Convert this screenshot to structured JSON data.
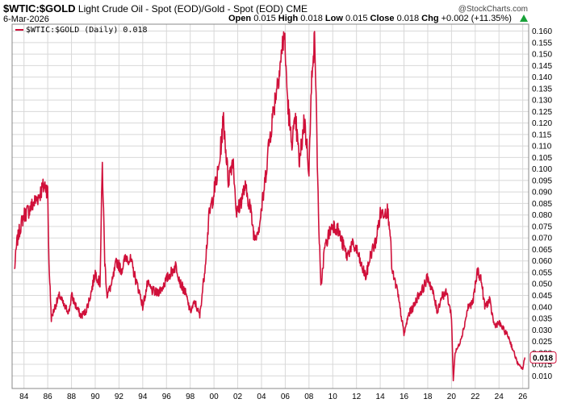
{
  "header": {
    "symbol": "$WTIC:$GOLD",
    "description": "Light Crude Oil - Spot (EOD)/Gold - Spot (EOD)",
    "exchange": "CME",
    "date": "6-Mar-2026",
    "open_label": "Open",
    "open": "0.015",
    "high_label": "High",
    "high": "0.018",
    "low_label": "Low",
    "low": "0.015",
    "close_label": "Close",
    "close": "0.018",
    "chg_label": "Chg",
    "chg": "+0.002 (+11.35%)",
    "brand": "@StockCharts.com"
  },
  "colors": {
    "series": "#d0103a",
    "grid": "#d8d8d8",
    "up": "#19a23a"
  },
  "chart_data": {
    "type": "line",
    "legend": "$WTIC:$GOLD (Daily) 0.018",
    "legend_placement": "top-left",
    "last_value": "0.018",
    "grid": true,
    "y_axis_side": "right",
    "ylim": [
      0.0045,
      0.163
    ],
    "xlim": [
      1983.0,
      2026.5
    ],
    "x_ticks": [
      "84",
      "86",
      "88",
      "90",
      "92",
      "94",
      "96",
      "98",
      "00",
      "02",
      "04",
      "06",
      "08",
      "10",
      "12",
      "14",
      "16",
      "18",
      "20",
      "22",
      "24",
      "26"
    ],
    "y_ticks": [
      "0.010",
      "0.015",
      "0.020",
      "0.025",
      "0.030",
      "0.035",
      "0.040",
      "0.045",
      "0.050",
      "0.055",
      "0.060",
      "0.065",
      "0.070",
      "0.075",
      "0.080",
      "0.085",
      "0.090",
      "0.095",
      "0.100",
      "0.105",
      "0.110",
      "0.115",
      "0.120",
      "0.125",
      "0.130",
      "0.135",
      "0.140",
      "0.145",
      "0.150",
      "0.155",
      "0.160"
    ],
    "x": [
      1983.2,
      1983.4,
      1983.7,
      1984.0,
      1984.4,
      1984.8,
      1985.2,
      1985.6,
      1985.8,
      1986.0,
      1986.1,
      1986.3,
      1986.6,
      1987.0,
      1987.4,
      1987.8,
      1988.0,
      1988.4,
      1988.8,
      1989.2,
      1989.6,
      1990.0,
      1990.4,
      1990.6,
      1990.8,
      1991.0,
      1991.4,
      1991.8,
      1992.2,
      1992.6,
      1993.0,
      1993.4,
      1993.8,
      1994.0,
      1994.4,
      1994.8,
      1995.2,
      1995.6,
      1996.0,
      1996.4,
      1996.8,
      1997.2,
      1997.6,
      1998.0,
      1998.4,
      1998.8,
      1999.2,
      1999.6,
      2000.0,
      2000.4,
      2000.8,
      2001.2,
      2001.6,
      2001.9,
      2002.2,
      2002.6,
      2003.0,
      2003.4,
      2003.8,
      2004.2,
      2004.6,
      2005.0,
      2005.4,
      2005.7,
      2005.9,
      2006.2,
      2006.5,
      2006.9,
      2007.2,
      2007.6,
      2008.0,
      2008.3,
      2008.5,
      2008.8,
      2009.0,
      2009.3,
      2009.7,
      2010.0,
      2010.4,
      2010.8,
      2011.2,
      2011.6,
      2012.0,
      2012.4,
      2012.8,
      2013.2,
      2013.6,
      2014.0,
      2014.4,
      2014.6,
      2014.8,
      2015.0,
      2015.4,
      2015.8,
      2016.0,
      2016.4,
      2016.8,
      2017.2,
      2017.6,
      2018.0,
      2018.4,
      2018.8,
      2019.2,
      2019.6,
      2020.0,
      2020.15,
      2020.3,
      2020.6,
      2021.0,
      2021.4,
      2021.8,
      2022.2,
      2022.5,
      2022.8,
      2023.2,
      2023.6,
      2024.0,
      2024.4,
      2024.8,
      2025.2,
      2025.6,
      2026.0,
      2026.18
    ],
    "y": [
      0.056,
      0.068,
      0.075,
      0.08,
      0.082,
      0.085,
      0.088,
      0.092,
      0.093,
      0.09,
      0.06,
      0.035,
      0.04,
      0.045,
      0.04,
      0.038,
      0.045,
      0.04,
      0.036,
      0.038,
      0.045,
      0.055,
      0.05,
      0.102,
      0.06,
      0.045,
      0.05,
      0.06,
      0.056,
      0.062,
      0.06,
      0.052,
      0.045,
      0.04,
      0.05,
      0.047,
      0.046,
      0.048,
      0.052,
      0.055,
      0.058,
      0.05,
      0.046,
      0.038,
      0.042,
      0.036,
      0.055,
      0.08,
      0.09,
      0.1,
      0.122,
      0.095,
      0.105,
      0.08,
      0.085,
      0.092,
      0.085,
      0.07,
      0.075,
      0.09,
      0.11,
      0.125,
      0.14,
      0.15,
      0.16,
      0.13,
      0.112,
      0.12,
      0.102,
      0.122,
      0.1,
      0.15,
      0.155,
      0.08,
      0.048,
      0.065,
      0.072,
      0.076,
      0.074,
      0.068,
      0.062,
      0.067,
      0.065,
      0.058,
      0.053,
      0.063,
      0.068,
      0.08,
      0.082,
      0.082,
      0.076,
      0.055,
      0.048,
      0.035,
      0.028,
      0.037,
      0.04,
      0.045,
      0.048,
      0.053,
      0.047,
      0.038,
      0.045,
      0.046,
      0.036,
      0.008,
      0.02,
      0.023,
      0.03,
      0.04,
      0.042,
      0.056,
      0.052,
      0.04,
      0.043,
      0.032,
      0.033,
      0.03,
      0.027,
      0.021,
      0.015,
      0.013,
      0.018
    ]
  }
}
